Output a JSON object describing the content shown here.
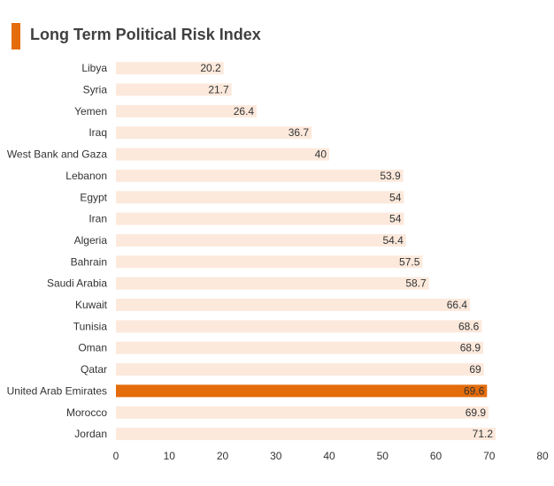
{
  "colors": {
    "accent": "#e46c0a",
    "bar": "#fce9dc",
    "highlight": "#e46c0a",
    "text": "#333333"
  },
  "chart_data": {
    "type": "bar",
    "orientation": "horizontal",
    "title": "Long Term Political Risk Index",
    "categories": [
      "Libya",
      "Syria",
      "Yemen",
      "Iraq",
      "West Bank and Gaza",
      "Lebanon",
      "Egypt",
      "Iran",
      "Algeria",
      "Bahrain",
      "Saudi Arabia",
      "Kuwait",
      "Tunisia",
      "Oman",
      "Qatar",
      "United Arab Emirates",
      "Morocco",
      "Jordan"
    ],
    "values": [
      20.2,
      21.7,
      26.4,
      36.7,
      40,
      53.9,
      54,
      54,
      54.4,
      57.5,
      58.7,
      66.4,
      68.6,
      68.9,
      69,
      69.6,
      69.9,
      71.2
    ],
    "value_labels": [
      "20.2",
      "21.7",
      "26.4",
      "36.7",
      "40",
      "53.9",
      "54",
      "54",
      "54.4",
      "57.5",
      "58.7",
      "66.4",
      "68.6",
      "68.9",
      "69",
      "69.6",
      "69.9",
      "71.2"
    ],
    "highlighted": "United Arab Emirates",
    "xlim": [
      0,
      80
    ],
    "xticks": [
      0,
      10,
      20,
      30,
      40,
      50,
      60,
      70,
      80
    ],
    "xlabel": "",
    "ylabel": "",
    "grid": false
  }
}
